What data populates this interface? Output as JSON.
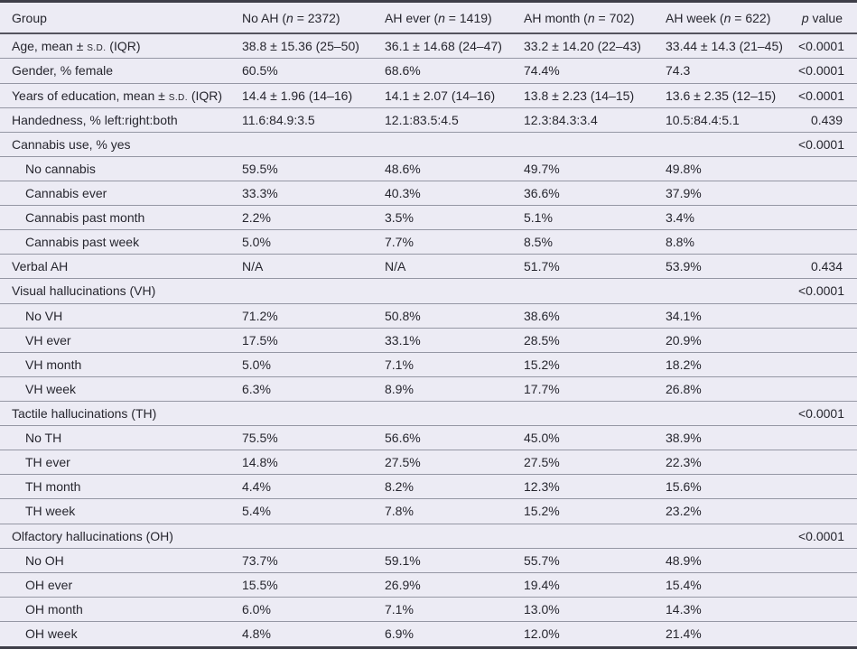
{
  "colors": {
    "table_background": "#ecebf4",
    "outer_rule": "#3e3e48",
    "header_rule": "#54545e",
    "row_separator": "#9597a4",
    "text": "#26262e"
  },
  "table": {
    "columns": [
      {
        "key": "group",
        "text": "Group",
        "align": "left"
      },
      {
        "key": "no-ah",
        "text": "No AH ({i:n} = 2372)",
        "align": "left"
      },
      {
        "key": "ah-ever",
        "text": "AH ever ({i:n} = 1419)",
        "align": "left"
      },
      {
        "key": "ah-month",
        "text": "AH month ({i:n} = 702)",
        "align": "left"
      },
      {
        "key": "ah-week",
        "text": "AH week ({i:n} = 622)",
        "align": "left"
      },
      {
        "key": "p-value",
        "text": "{i:p} value",
        "align": "right"
      }
    ],
    "rows": [
      {
        "label": "Age, mean ± {sc:s.d.} (IQR)",
        "indent": false,
        "values": [
          "38.8 ± 15.36 (25–50)",
          "36.1 ± 14.68 (24–47)",
          "33.2 ± 14.20 (22–43)",
          "33.44 ± 14.3 (21–45)"
        ],
        "p": "<0.0001"
      },
      {
        "label": "Gender, % female",
        "indent": false,
        "values": [
          "60.5%",
          "68.6%",
          "74.4%",
          "74.3"
        ],
        "p": "<0.0001"
      },
      {
        "label": "Years of education, mean ± {sc:s.d.} (IQR)",
        "indent": false,
        "values": [
          "14.4 ± 1.96 (14–16)",
          "14.1 ± 2.07 (14–16)",
          "13.8 ± 2.23 (14–15)",
          "13.6 ± 2.35 (12–15)"
        ],
        "p": "<0.0001"
      },
      {
        "label": "Handedness, % left:right:both",
        "indent": false,
        "values": [
          "11.6:84.9:3.5",
          "12.1:83.5:4.5",
          "12.3:84.3:3.4",
          "10.5:84.4:5.1"
        ],
        "p": "0.439"
      },
      {
        "label": "Cannabis use, % yes",
        "indent": false,
        "values": [
          "",
          "",
          "",
          ""
        ],
        "p": "<0.0001"
      },
      {
        "label": "No cannabis",
        "indent": true,
        "values": [
          "59.5%",
          "48.6%",
          "49.7%",
          "49.8%"
        ],
        "p": ""
      },
      {
        "label": "Cannabis ever",
        "indent": true,
        "values": [
          "33.3%",
          "40.3%",
          "36.6%",
          "37.9%"
        ],
        "p": ""
      },
      {
        "label": "Cannabis past month",
        "indent": true,
        "values": [
          "2.2%",
          "3.5%",
          "5.1%",
          "3.4%"
        ],
        "p": ""
      },
      {
        "label": "Cannabis past week",
        "indent": true,
        "values": [
          "5.0%",
          "7.7%",
          "8.5%",
          "8.8%"
        ],
        "p": ""
      },
      {
        "label": "Verbal AH",
        "indent": false,
        "values": [
          "N/A",
          "N/A",
          "51.7%",
          "53.9%"
        ],
        "p": "0.434"
      },
      {
        "label": "Visual hallucinations (VH)",
        "indent": false,
        "values": [
          "",
          "",
          "",
          ""
        ],
        "p": "<0.0001"
      },
      {
        "label": "No VH",
        "indent": true,
        "values": [
          "71.2%",
          "50.8%",
          "38.6%",
          "34.1%"
        ],
        "p": ""
      },
      {
        "label": "VH ever",
        "indent": true,
        "values": [
          "17.5%",
          "33.1%",
          "28.5%",
          "20.9%"
        ],
        "p": ""
      },
      {
        "label": "VH month",
        "indent": true,
        "values": [
          "5.0%",
          "7.1%",
          "15.2%",
          "18.2%"
        ],
        "p": ""
      },
      {
        "label": "VH week",
        "indent": true,
        "values": [
          "6.3%",
          "8.9%",
          "17.7%",
          "26.8%"
        ],
        "p": ""
      },
      {
        "label": "Tactile hallucinations (TH)",
        "indent": false,
        "values": [
          "",
          "",
          "",
          ""
        ],
        "p": "<0.0001"
      },
      {
        "label": "No TH",
        "indent": true,
        "values": [
          "75.5%",
          "56.6%",
          "45.0%",
          "38.9%"
        ],
        "p": ""
      },
      {
        "label": "TH ever",
        "indent": true,
        "values": [
          "14.8%",
          "27.5%",
          "27.5%",
          "22.3%"
        ],
        "p": ""
      },
      {
        "label": "TH month",
        "indent": true,
        "values": [
          "4.4%",
          "8.2%",
          "12.3%",
          "15.6%"
        ],
        "p": ""
      },
      {
        "label": "TH week",
        "indent": true,
        "values": [
          "5.4%",
          "7.8%",
          "15.2%",
          "23.2%"
        ],
        "p": ""
      },
      {
        "label": "Olfactory hallucinations (OH)",
        "indent": false,
        "values": [
          "",
          "",
          "",
          ""
        ],
        "p": "<0.0001"
      },
      {
        "label": "No OH",
        "indent": true,
        "values": [
          "73.7%",
          "59.1%",
          "55.7%",
          "48.9%"
        ],
        "p": ""
      },
      {
        "label": "OH ever",
        "indent": true,
        "values": [
          "15.5%",
          "26.9%",
          "19.4%",
          "15.4%"
        ],
        "p": ""
      },
      {
        "label": "OH month",
        "indent": true,
        "values": [
          "6.0%",
          "7.1%",
          "13.0%",
          "14.3%"
        ],
        "p": ""
      },
      {
        "label": "OH week",
        "indent": true,
        "values": [
          "4.8%",
          "6.9%",
          "12.0%",
          "21.4%"
        ],
        "p": ""
      }
    ]
  }
}
